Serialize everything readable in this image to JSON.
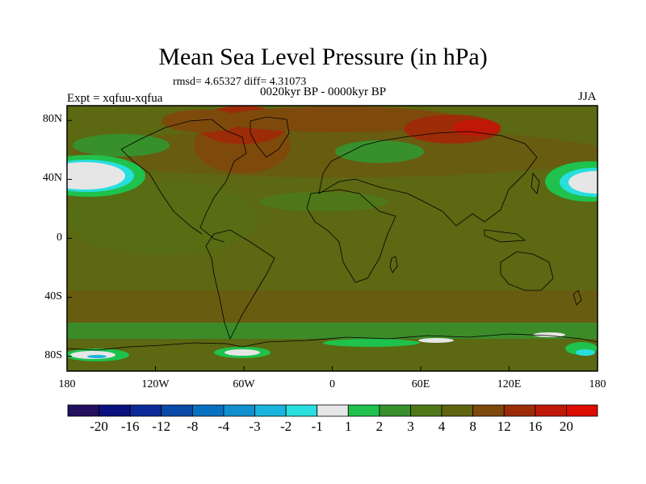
{
  "title": "Mean Sea Level Pressure (in hPa)",
  "stats_text": "rmsd= 4.65327 diff= 4.31073",
  "period_text": "0020kyr BP - 0000kyr BP",
  "experiment_text": "Expt = xqfuu-xqfua",
  "season_text": "JJA",
  "map": {
    "lon_range": [
      -180,
      180
    ],
    "lat_range": [
      -90,
      90
    ],
    "y_axis_labels": [
      "80N",
      "40N",
      "0",
      "40S",
      "80S"
    ],
    "y_axis_values": [
      80,
      40,
      0,
      -40,
      -80
    ],
    "x_axis_labels": [
      "180",
      "120W",
      "60W",
      "0",
      "60E",
      "120E",
      "180"
    ],
    "x_axis_values": [
      -180,
      -120,
      -60,
      0,
      60,
      120,
      180
    ]
  },
  "colorbar": {
    "labels": [
      "-20",
      "-16",
      "-12",
      "-8",
      "-4",
      "-3",
      "-2",
      "-1",
      "1",
      "2",
      "3",
      "4",
      "8",
      "12",
      "16",
      "20"
    ],
    "colors": [
      "#22105e",
      "#0a1280",
      "#0c2a98",
      "#0a4aa8",
      "#0870c0",
      "#1090cc",
      "#18b4dc",
      "#28dede",
      "#e6e6e6",
      "#1ec24c",
      "#37902c",
      "#4e7818",
      "#5f6410",
      "#7e4a0c",
      "#9c2c08",
      "#c01808",
      "#dc0c00"
    ]
  },
  "colors": {
    "base": "#5c6812",
    "landline": "#000000"
  }
}
